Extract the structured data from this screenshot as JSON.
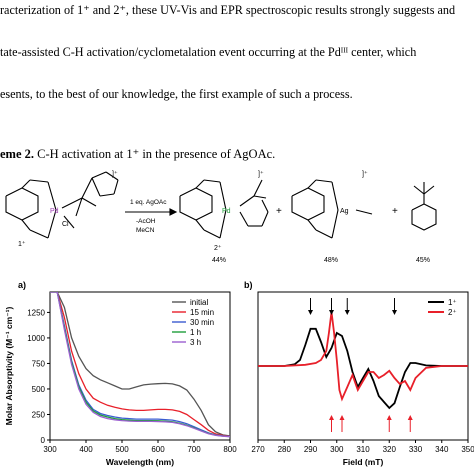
{
  "paragraph": {
    "line1": "racterization of 1⁺ and 2⁺, these UV-Vis and EPR spectroscopic results strongly suggests and",
    "line2": "tate-assisted C-H activation/cyclometalation event occurring at the Pdᴵᴵᴵ center, which",
    "line3": "esents, to the best of our knowledge, the first example of such a process."
  },
  "scheme": {
    "title_bold": "eme 2.",
    "title_rest": " C-H activation at 1⁺ in the presence of AgOAc.",
    "conditions": [
      "1 eq. AgOAc",
      "-AcOH",
      "MeCN"
    ],
    "labels": {
      "c1": "1⁺",
      "c2": "2⁺"
    },
    "yields": [
      "44%",
      "48%",
      "45%"
    ],
    "metals": {
      "pd1": "Pd",
      "pd2": "Pd",
      "ag": "Ag"
    },
    "cl": "Cl",
    "n": "N",
    "charge": "]⁺",
    "plus": "+"
  },
  "chart_data": [
    {
      "type": "line",
      "panel": "a)",
      "xlabel": "Wavelength (nm)",
      "ylabel": "Molar Absorptivity (M⁻¹ cm⁻¹)",
      "xlim": [
        300,
        800
      ],
      "ylim": [
        0,
        1450
      ],
      "xticks": [
        300,
        400,
        500,
        600,
        700,
        800
      ],
      "yticks": [
        0,
        250,
        500,
        750,
        1000,
        1250
      ],
      "legend_position": "top-right",
      "series": [
        {
          "name": "initial",
          "color": "#555555",
          "x": [
            300,
            320,
            340,
            360,
            380,
            400,
            420,
            440,
            460,
            480,
            500,
            520,
            540,
            560,
            580,
            600,
            620,
            640,
            660,
            680,
            700,
            720,
            740,
            760,
            780,
            800
          ],
          "y": [
            1450,
            1450,
            1300,
            1000,
            820,
            700,
            630,
            590,
            560,
            530,
            500,
            500,
            520,
            540,
            548,
            552,
            555,
            550,
            530,
            490,
            400,
            290,
            150,
            80,
            50,
            40
          ]
        },
        {
          "name": "15 min",
          "color": "#e8202a",
          "x": [
            300,
            320,
            340,
            360,
            380,
            400,
            420,
            440,
            460,
            480,
            500,
            520,
            540,
            560,
            580,
            600,
            620,
            640,
            660,
            680,
            700,
            720,
            740,
            760,
            780,
            800
          ],
          "y": [
            1450,
            1450,
            1200,
            870,
            650,
            500,
            410,
            370,
            340,
            320,
            305,
            295,
            290,
            290,
            295,
            300,
            300,
            295,
            280,
            250,
            200,
            150,
            95,
            60,
            45,
            38
          ]
        },
        {
          "name": "30 min",
          "color": "#3a5bd0",
          "x": [
            300,
            320,
            340,
            360,
            380,
            400,
            420,
            440,
            460,
            480,
            500,
            520,
            540,
            560,
            580,
            600,
            620,
            640,
            660,
            680,
            700,
            720,
            740,
            760,
            780,
            800
          ],
          "y": [
            1450,
            1450,
            1120,
            780,
            540,
            390,
            300,
            260,
            240,
            225,
            215,
            210,
            205,
            205,
            205,
            205,
            200,
            195,
            180,
            160,
            130,
            100,
            70,
            50,
            40,
            35
          ]
        },
        {
          "name": "1 h",
          "color": "#1f9e3a",
          "x": [
            300,
            320,
            340,
            360,
            380,
            400,
            420,
            440,
            460,
            480,
            500,
            520,
            540,
            560,
            580,
            600,
            620,
            640,
            660,
            680,
            700,
            720,
            740,
            760,
            780,
            800
          ],
          "y": [
            1450,
            1450,
            1100,
            760,
            520,
            370,
            285,
            245,
            225,
            210,
            200,
            195,
            190,
            190,
            190,
            188,
            185,
            178,
            165,
            145,
            120,
            90,
            65,
            48,
            38,
            33
          ]
        },
        {
          "name": "3 h",
          "color": "#9b5fd0",
          "x": [
            300,
            320,
            340,
            360,
            380,
            400,
            420,
            440,
            460,
            480,
            500,
            520,
            540,
            560,
            580,
            600,
            620,
            640,
            660,
            680,
            700,
            720,
            740,
            760,
            780,
            800
          ],
          "y": [
            1450,
            1450,
            1080,
            740,
            500,
            350,
            270,
            230,
            210,
            198,
            190,
            185,
            182,
            182,
            182,
            180,
            178,
            172,
            160,
            140,
            115,
            88,
            62,
            46,
            37,
            32
          ]
        }
      ]
    },
    {
      "type": "line",
      "panel": "b)",
      "xlabel": "Field (mT)",
      "xlim": [
        270,
        350
      ],
      "xticks": [
        270,
        280,
        290,
        300,
        310,
        320,
        330,
        340,
        350
      ],
      "legend_position": "top-right",
      "series": [
        {
          "name": "1⁺",
          "color": "#000000",
          "x": [
            270,
            280,
            284,
            286,
            288,
            290,
            292,
            294,
            296,
            298,
            300,
            302,
            304,
            306,
            308,
            310,
            312,
            314,
            316,
            318,
            320,
            322,
            324,
            326,
            328,
            330,
            334,
            340,
            350
          ],
          "y": [
            0,
            0,
            0.03,
            0.1,
            0.35,
            0.62,
            0.62,
            0.4,
            0.15,
            0.3,
            0.55,
            0.5,
            0.25,
            -0.1,
            -0.35,
            -0.2,
            -0.05,
            -0.25,
            -0.5,
            -0.6,
            -0.7,
            -0.62,
            -0.35,
            -0.1,
            0.05,
            0.05,
            0.01,
            0,
            0
          ]
        },
        {
          "name": "2⁺",
          "color": "#e8202a",
          "x": [
            270,
            280,
            288,
            292,
            294,
            296,
            297,
            298,
            299,
            300,
            301,
            302,
            304,
            306,
            308,
            310,
            312,
            314,
            316,
            318,
            320,
            322,
            324,
            326,
            328,
            330,
            334,
            340,
            350
          ],
          "y": [
            0,
            0,
            0.02,
            0.05,
            0.1,
            0.25,
            0.55,
            0.9,
            0.55,
            0.1,
            -0.4,
            -0.55,
            -0.35,
            -0.15,
            -0.4,
            -0.25,
            -0.1,
            -0.1,
            -0.2,
            -0.15,
            -0.08,
            -0.2,
            -0.3,
            -0.25,
            -0.4,
            -0.2,
            -0.03,
            0,
            0
          ]
        }
      ]
    }
  ]
}
